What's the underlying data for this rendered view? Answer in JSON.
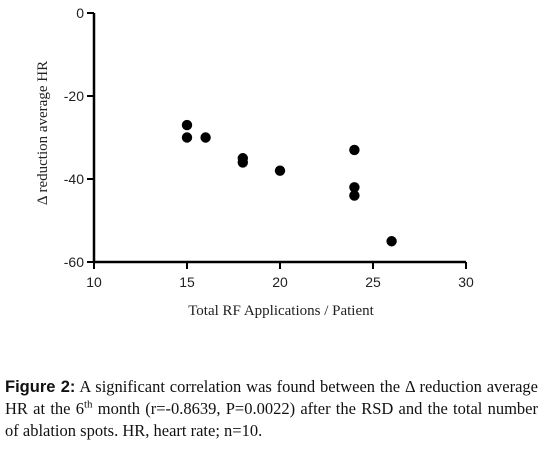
{
  "chart_data": {
    "type": "scatter",
    "xlabel": "Total RF Applications / Patient",
    "ylabel": "Δ reduction average HR",
    "xlim": [
      10,
      30
    ],
    "ylim": [
      -60,
      0
    ],
    "x_ticks": [
      "10",
      "15",
      "20",
      "25",
      "30"
    ],
    "y_ticks": [
      "0",
      "-20",
      "-40",
      "-60"
    ],
    "grid": false,
    "marker_color": "#000000",
    "points": [
      {
        "x": 15,
        "y": -27
      },
      {
        "x": 15,
        "y": -30
      },
      {
        "x": 16,
        "y": -30
      },
      {
        "x": 18,
        "y": -35
      },
      {
        "x": 18,
        "y": -36
      },
      {
        "x": 20,
        "y": -38
      },
      {
        "x": 24,
        "y": -33
      },
      {
        "x": 24,
        "y": -42
      },
      {
        "x": 24,
        "y": -44
      },
      {
        "x": 26,
        "y": -55
      }
    ]
  },
  "caption": {
    "label": "Figure 2:",
    "text_before_sup": " A significant correlation was found between the Δ reduction average HR at the 6",
    "sup": "th",
    "text_after_sup": " month (r=-0.8639, P=0.0022) after the RSD and the total number of ablation spots. HR, heart rate; n=10."
  }
}
